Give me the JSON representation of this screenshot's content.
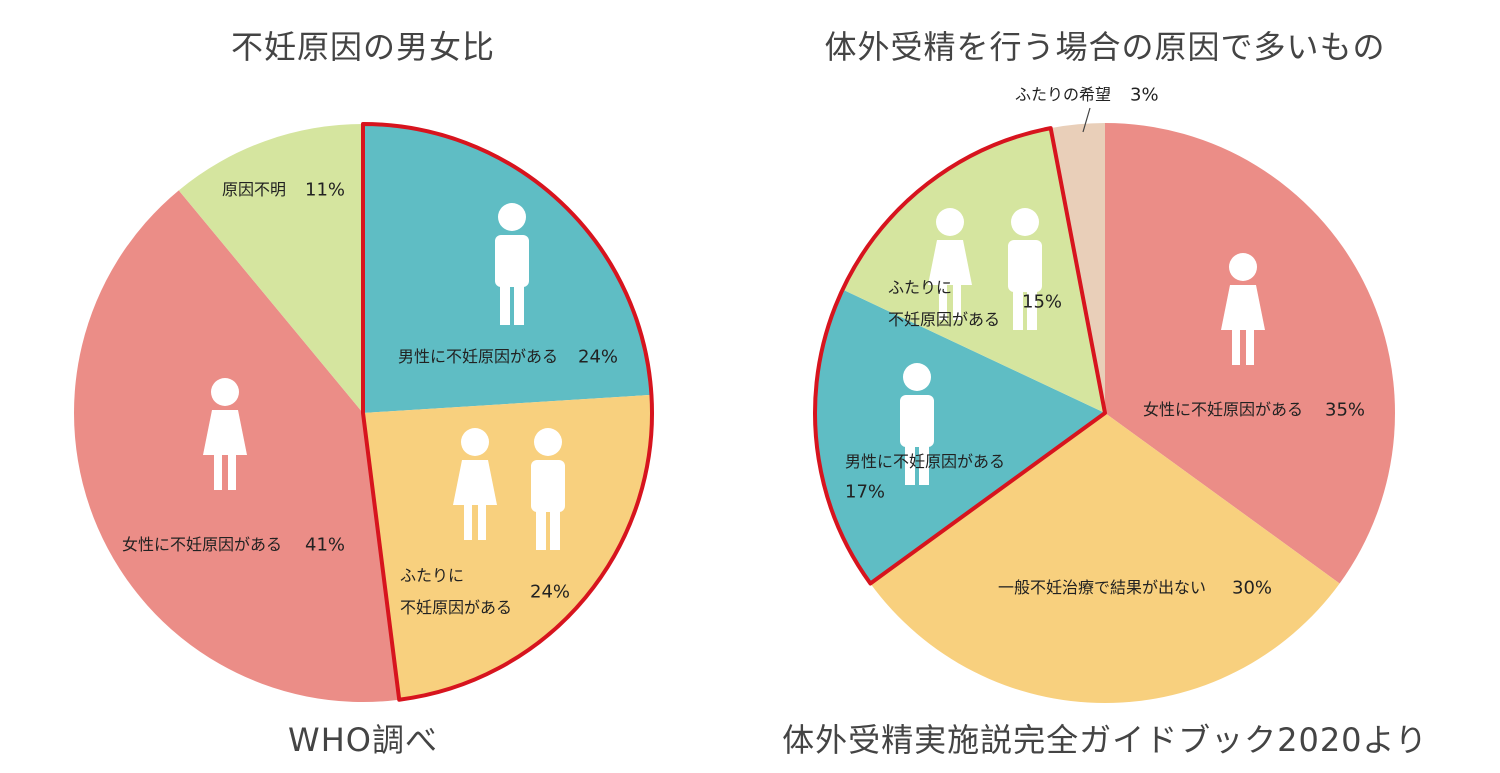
{
  "chart_data": [
    {
      "type": "pie",
      "title": "不妊原因の男女比",
      "source": "WHO調べ",
      "categories": [
        "男性に不妊原因がある",
        "ふたりに\n不妊原因がある",
        "女性に不妊原因がある",
        "原因不明"
      ],
      "values": [
        24,
        24,
        41,
        11
      ],
      "value_labels": [
        "24%",
        "24%",
        "41%",
        "11%"
      ],
      "colors": [
        "#5fbdc4",
        "#f8d07e",
        "#eb8d87",
        "#d5e59f"
      ],
      "highlight": [
        0,
        1
      ],
      "highlight_color": "#d7141e"
    },
    {
      "type": "pie",
      "title": "体外受精を行う場合の原因で多いもの",
      "source": "体外受精実施説完全ガイドブック2020より",
      "categories": [
        "女性に不妊原因がある",
        "一般不妊治療で結果が出ない",
        "男性に不妊原因がある",
        "ふたりに\n不妊原因がある",
        "ふたりの希望"
      ],
      "values": [
        35,
        30,
        17,
        15,
        3
      ],
      "value_labels": [
        "35%",
        "30%",
        "17%",
        "15%",
        "3%"
      ],
      "colors": [
        "#eb8d87",
        "#f8d07e",
        "#5fbdc4",
        "#d5e59f",
        "#e9cfb9"
      ],
      "highlight": [
        2,
        3
      ],
      "highlight_color": "#d7141e"
    }
  ]
}
